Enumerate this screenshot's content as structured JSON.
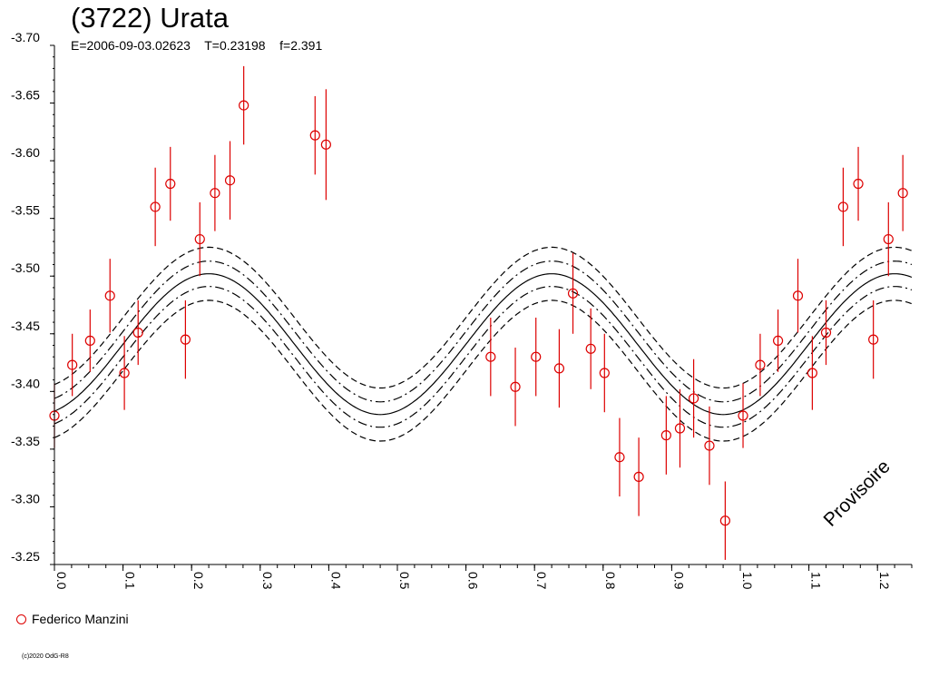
{
  "header": {
    "title": "(3722) Urata",
    "subtitle": "E=2006-09-03.02623    T=0.23198    f=2.391"
  },
  "legend": {
    "label": "Federico Manzini",
    "color": "#dd0000"
  },
  "copyright": "(c)2020 OdG-R8",
  "watermark": "Provisoire",
  "chart_data": {
    "type": "scatter",
    "title": "(3722) Urata",
    "subtitle": "E=2006-09-03.02623    T=0.23198    f=2.391",
    "xlim": [
      0.0,
      1.25
    ],
    "ylim": [
      -3.7,
      -3.25
    ],
    "y_inverted": true,
    "x_ticks": [
      "0.0",
      "0.1",
      "0.2",
      "0.3",
      "0.4",
      "0.5",
      "0.6",
      "0.7",
      "0.8",
      "0.9",
      "1.0",
      "1.1",
      "1.2"
    ],
    "y_ticks": [
      "-3.70",
      "-3.65",
      "-3.60",
      "-3.55",
      "-3.50",
      "-3.45",
      "-3.40",
      "-3.35",
      "-3.30",
      "-3.25"
    ],
    "grid": false,
    "legend_position": "bottom-left",
    "series": [
      {
        "name": "Federico Manzini",
        "color": "#dd0000",
        "marker": "open-circle",
        "points": [
          {
            "x": 0.0,
            "y": -3.379,
            "err": 0.028
          },
          {
            "x": 0.026,
            "y": -3.423,
            "err": 0.027
          },
          {
            "x": 0.052,
            "y": -3.444,
            "err": 0.027
          },
          {
            "x": 0.081,
            "y": -3.483,
            "err": 0.032
          },
          {
            "x": 0.102,
            "y": -3.416,
            "err": 0.032
          },
          {
            "x": 0.122,
            "y": -3.451,
            "err": 0.028
          },
          {
            "x": 0.147,
            "y": -3.56,
            "err": 0.034
          },
          {
            "x": 0.169,
            "y": -3.58,
            "err": 0.032
          },
          {
            "x": 0.191,
            "y": -3.445,
            "err": 0.034
          },
          {
            "x": 0.212,
            "y": -3.532,
            "err": 0.032
          },
          {
            "x": 0.234,
            "y": -3.572,
            "err": 0.033
          },
          {
            "x": 0.256,
            "y": -3.583,
            "err": 0.034
          },
          {
            "x": 0.276,
            "y": -3.648,
            "err": 0.034
          },
          {
            "x": 0.38,
            "y": -3.622,
            "err": 0.034
          },
          {
            "x": 0.396,
            "y": -3.614,
            "err": 0.048
          },
          {
            "x": 0.636,
            "y": -3.43,
            "err": 0.034
          },
          {
            "x": 0.672,
            "y": -3.404,
            "err": 0.034
          },
          {
            "x": 0.702,
            "y": -3.43,
            "err": 0.034
          },
          {
            "x": 0.736,
            "y": -3.42,
            "err": 0.034
          },
          {
            "x": 0.756,
            "y": -3.485,
            "err": 0.035
          },
          {
            "x": 0.782,
            "y": -3.437,
            "err": 0.035
          },
          {
            "x": 0.802,
            "y": -3.416,
            "err": 0.034
          },
          {
            "x": 0.824,
            "y": -3.343,
            "err": 0.034
          },
          {
            "x": 0.852,
            "y": -3.326,
            "err": 0.034
          },
          {
            "x": 0.892,
            "y": -3.362,
            "err": 0.034
          },
          {
            "x": 0.912,
            "y": -3.368,
            "err": 0.034
          },
          {
            "x": 0.932,
            "y": -3.394,
            "err": 0.034
          },
          {
            "x": 0.955,
            "y": -3.353,
            "err": 0.034
          },
          {
            "x": 0.978,
            "y": -3.288,
            "err": 0.034
          },
          {
            "x": 1.004,
            "y": -3.379,
            "err": 0.028
          },
          {
            "x": 1.029,
            "y": -3.423,
            "err": 0.027
          },
          {
            "x": 1.055,
            "y": -3.444,
            "err": 0.027
          },
          {
            "x": 1.084,
            "y": -3.483,
            "err": 0.032
          },
          {
            "x": 1.105,
            "y": -3.416,
            "err": 0.032
          },
          {
            "x": 1.125,
            "y": -3.451,
            "err": 0.028
          },
          {
            "x": 1.15,
            "y": -3.56,
            "err": 0.034
          },
          {
            "x": 1.172,
            "y": -3.58,
            "err": 0.032
          },
          {
            "x": 1.194,
            "y": -3.445,
            "err": 0.034
          },
          {
            "x": 1.216,
            "y": -3.532,
            "err": 0.032
          },
          {
            "x": 1.237,
            "y": -3.572,
            "err": 0.033
          }
        ]
      }
    ],
    "model_curves": [
      {
        "style": "solid",
        "mean": -3.441,
        "amplitude": 0.061,
        "phase": 0.225
      },
      {
        "style": "dashdot",
        "mean": -3.43,
        "amplitude": 0.061,
        "phase": 0.225
      },
      {
        "style": "dashdot",
        "mean": -3.452,
        "amplitude": 0.061,
        "phase": 0.225
      },
      {
        "style": "dashed",
        "mean": -3.418,
        "amplitude": 0.061,
        "phase": 0.225
      },
      {
        "style": "dashed",
        "mean": -3.464,
        "amplitude": 0.061,
        "phase": 0.225
      }
    ]
  }
}
